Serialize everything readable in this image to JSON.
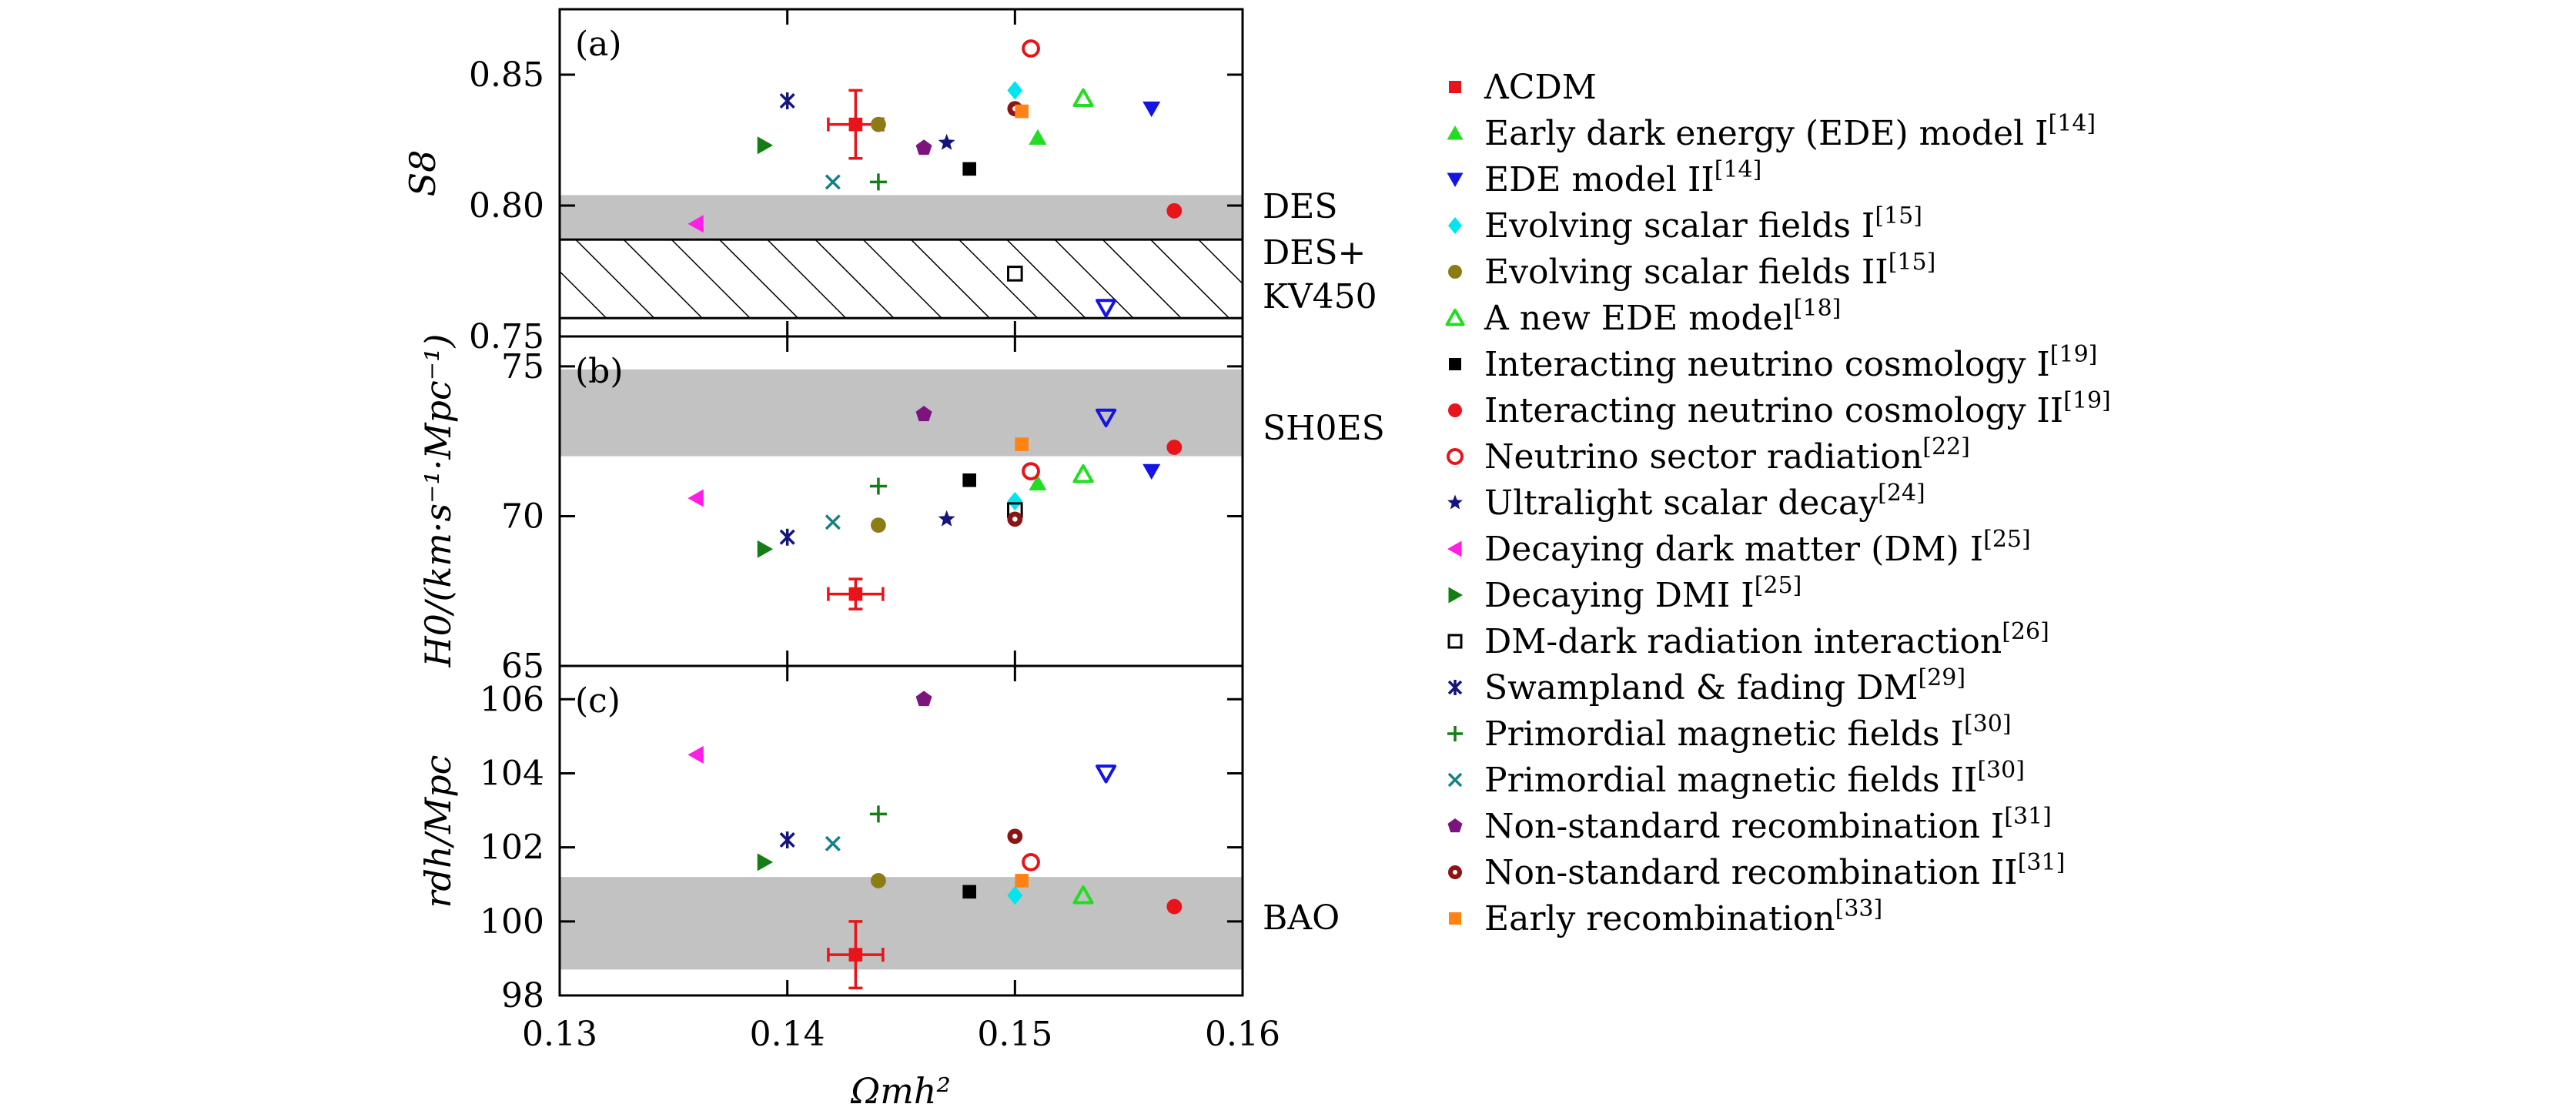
{
  "chart_data": {
    "type": "scatter",
    "xlabel": "Ωmh²",
    "x_ticks": [
      "0.13",
      "0.14",
      "0.15",
      "0.16"
    ],
    "xlim": [
      0.13,
      0.16
    ],
    "panels": [
      {
        "id": "a",
        "label": "(a)",
        "ylabel": "S8",
        "ylim": [
          0.75,
          0.875
        ],
        "y_ticks": [
          {
            "value": 0.75,
            "label": "0.75"
          },
          {
            "value": 0.8,
            "label": "0.80"
          },
          {
            "value": 0.85,
            "label": "0.85"
          }
        ],
        "bands": [
          {
            "label": "DES",
            "lo": 0.787,
            "hi": 0.804,
            "style": "gray"
          },
          {
            "label": "DES+ KV450",
            "lo": 0.757,
            "hi": 0.787,
            "style": "hatch"
          }
        ],
        "band_labels": [
          "DES",
          "DES+",
          "KV450"
        ],
        "points": [
          {
            "model": "ΛCDM",
            "x": 0.143,
            "y": 0.831,
            "xerr": 0.0012,
            "yerr": 0.013
          },
          {
            "model": "Early dark energy (EDE) model I",
            "x": 0.151,
            "y": 0.826
          },
          {
            "model": "EDE model II",
            "x": 0.156,
            "y": 0.837
          },
          {
            "model": "Evolving scalar fields I",
            "x": 0.15,
            "y": 0.844
          },
          {
            "model": "Evolving scalar fields II",
            "x": 0.144,
            "y": 0.831
          },
          {
            "model": "A new EDE model",
            "x": 0.153,
            "y": 0.841
          },
          {
            "model": "Interacting neutrino cosmology I",
            "x": 0.148,
            "y": 0.814
          },
          {
            "model": "Interacting neutrino cosmology II",
            "x": 0.157,
            "y": 0.798
          },
          {
            "model": "Neutrino sector radiation",
            "x": 0.1507,
            "y": 0.86
          },
          {
            "model": "Ultralight scalar decay",
            "x": 0.147,
            "y": 0.824
          },
          {
            "model": "Decaying dark matter (DM) I",
            "x": 0.136,
            "y": 0.793
          },
          {
            "model": "Decaying DMI I",
            "x": 0.139,
            "y": 0.823
          },
          {
            "model": "DM-dark radiation interaction",
            "x": 0.15,
            "y": 0.774
          },
          {
            "model": "Swampland & fading DM",
            "x": 0.14,
            "y": 0.84
          },
          {
            "model": "Primordial magnetic fields I",
            "x": 0.144,
            "y": 0.809
          },
          {
            "model": "Primordial magnetic fields II",
            "x": 0.142,
            "y": 0.809
          },
          {
            "model": "Non-standard recombination I",
            "x": 0.146,
            "y": 0.822
          },
          {
            "model": "Non-standard recombination II",
            "x": 0.15,
            "y": 0.837
          },
          {
            "model": "Early recombination",
            "x": 0.1503,
            "y": 0.836
          },
          {
            "model": "EDE model II",
            "x": 0.154,
            "y": 0.761,
            "open": true
          }
        ]
      },
      {
        "id": "b",
        "label": "(b)",
        "ylabel": "H0/(km·s⁻¹·Mpc⁻¹)",
        "ylim": [
          65,
          76
        ],
        "y_ticks": [
          {
            "value": 65,
            "label": "65"
          },
          {
            "value": 70,
            "label": "70"
          },
          {
            "value": 75,
            "label": "75"
          }
        ],
        "bands": [
          {
            "label": "SH0ES",
            "lo": 72.0,
            "hi": 74.9,
            "style": "gray"
          }
        ],
        "band_labels": [
          "SH0ES"
        ],
        "points": [
          {
            "model": "ΛCDM",
            "x": 0.143,
            "y": 67.4,
            "xerr": 0.0012,
            "yerr": 0.5
          },
          {
            "model": "Early dark energy (EDE) model I",
            "x": 0.151,
            "y": 71.1
          },
          {
            "model": "EDE model II",
            "x": 0.156,
            "y": 71.5
          },
          {
            "model": "Evolving scalar fields I",
            "x": 0.15,
            "y": 70.5
          },
          {
            "model": "Evolving scalar fields II",
            "x": 0.144,
            "y": 69.7
          },
          {
            "model": "A new EDE model",
            "x": 0.153,
            "y": 71.4
          },
          {
            "model": "Interacting neutrino cosmology I",
            "x": 0.148,
            "y": 71.2
          },
          {
            "model": "Interacting neutrino cosmology II",
            "x": 0.157,
            "y": 72.3
          },
          {
            "model": "Neutrino sector radiation",
            "x": 0.1507,
            "y": 71.5
          },
          {
            "model": "Ultralight scalar decay",
            "x": 0.147,
            "y": 69.9
          },
          {
            "model": "Decaying dark matter (DM) I",
            "x": 0.136,
            "y": 70.6
          },
          {
            "model": "Decaying DMI I",
            "x": 0.139,
            "y": 68.9
          },
          {
            "model": "DM-dark radiation interaction",
            "x": 0.15,
            "y": 70.2
          },
          {
            "model": "Swampland & fading DM",
            "x": 0.14,
            "y": 69.3
          },
          {
            "model": "Primordial magnetic fields I",
            "x": 0.144,
            "y": 71.0
          },
          {
            "model": "Primordial magnetic fields II",
            "x": 0.142,
            "y": 69.8
          },
          {
            "model": "Non-standard recombination I",
            "x": 0.146,
            "y": 73.4
          },
          {
            "model": "Non-standard recombination II",
            "x": 0.15,
            "y": 69.9
          },
          {
            "model": "Early recombination",
            "x": 0.1503,
            "y": 72.4
          },
          {
            "model": "EDE model II",
            "x": 0.154,
            "y": 73.3,
            "open": true
          }
        ]
      },
      {
        "id": "c",
        "label": "(c)",
        "ylabel": "rdh/Mpc",
        "ylim": [
          98,
          106.9
        ],
        "y_ticks": [
          {
            "value": 98,
            "label": "98"
          },
          {
            "value": 100,
            "label": "100"
          },
          {
            "value": 102,
            "label": "102"
          },
          {
            "value": 104,
            "label": "104"
          },
          {
            "value": 106,
            "label": "106"
          }
        ],
        "bands": [
          {
            "label": "BAO",
            "lo": 98.7,
            "hi": 101.2,
            "style": "gray"
          }
        ],
        "band_labels": [
          "BAO"
        ],
        "points": [
          {
            "model": "ΛCDM",
            "x": 0.143,
            "y": 99.1,
            "xerr": 0.0012,
            "yerr": 0.9
          },
          {
            "model": "Evolving scalar fields I",
            "x": 0.15,
            "y": 100.7
          },
          {
            "model": "Evolving scalar fields II",
            "x": 0.144,
            "y": 101.1
          },
          {
            "model": "A new EDE model",
            "x": 0.153,
            "y": 100.7
          },
          {
            "model": "Interacting neutrino cosmology I",
            "x": 0.148,
            "y": 100.8
          },
          {
            "model": "Interacting neutrino cosmology II",
            "x": 0.157,
            "y": 100.4
          },
          {
            "model": "Neutrino sector radiation",
            "x": 0.1507,
            "y": 101.6
          },
          {
            "model": "Decaying dark matter (DM) I",
            "x": 0.136,
            "y": 104.5
          },
          {
            "model": "Decaying DMI I",
            "x": 0.139,
            "y": 101.6
          },
          {
            "model": "Swampland & fading DM",
            "x": 0.14,
            "y": 102.2
          },
          {
            "model": "Primordial magnetic fields I",
            "x": 0.144,
            "y": 102.9
          },
          {
            "model": "Primordial magnetic fields II",
            "x": 0.142,
            "y": 102.1
          },
          {
            "model": "Non-standard recombination I",
            "x": 0.146,
            "y": 106.0
          },
          {
            "model": "Non-standard recombination II",
            "x": 0.15,
            "y": 102.3
          },
          {
            "model": "Early recombination",
            "x": 0.1503,
            "y": 101.1
          },
          {
            "model": "EDE model II",
            "x": 0.154,
            "y": 104.0,
            "open": true
          }
        ]
      }
    ],
    "legend": [
      {
        "label": "ΛCDM",
        "ref": "",
        "marker": "square",
        "color": "#e8141a",
        "filled": true
      },
      {
        "label": "Early dark energy (EDE) model I",
        "ref": "[14]",
        "marker": "triangle-up",
        "color": "#22dd22",
        "filled": true
      },
      {
        "label": "EDE model II",
        "ref": "[14]",
        "marker": "triangle-down",
        "color": "#1414e6",
        "filled": true
      },
      {
        "label": "Evolving scalar fields I",
        "ref": "[15]",
        "marker": "diamond",
        "color": "#00e5ee",
        "filled": true
      },
      {
        "label": "Evolving scalar fields II",
        "ref": "[15]",
        "marker": "circle",
        "color": "#8b7d14",
        "filled": true
      },
      {
        "label": "A new EDE model",
        "ref": "[18]",
        "marker": "triangle-up",
        "color": "#22dd22",
        "filled": false
      },
      {
        "label": "Interacting neutrino cosmology I",
        "ref": "[19]",
        "marker": "square",
        "color": "#000000",
        "filled": true
      },
      {
        "label": "Interacting neutrino cosmology II",
        "ref": "[19]",
        "marker": "circle",
        "color": "#e8141a",
        "filled": true
      },
      {
        "label": "Neutrino sector radiation",
        "ref": "[22]",
        "marker": "circle",
        "color": "#e8141a",
        "filled": false
      },
      {
        "label": "Ultralight scalar decay",
        "ref": "[24]",
        "marker": "star",
        "color": "#14147d",
        "filled": true
      },
      {
        "label": "Decaying dark matter (DM) I",
        "ref": "[25]",
        "marker": "triangle-left",
        "color": "#ff1ee6",
        "filled": true
      },
      {
        "label": "Decaying DMI I",
        "ref": "[25]",
        "marker": "triangle-right",
        "color": "#147d14",
        "filled": true
      },
      {
        "label": "DM-dark radiation interaction",
        "ref": "[26]",
        "marker": "square",
        "color": "#000000",
        "filled": false
      },
      {
        "label": "Swampland & fading DM",
        "ref": "[29]",
        "marker": "asterisk",
        "color": "#14147d",
        "filled": true
      },
      {
        "label": "Primordial magnetic fields I",
        "ref": "[30]",
        "marker": "plus",
        "color": "#147d14",
        "filled": true
      },
      {
        "label": "Primordial magnetic fields II",
        "ref": "[30]",
        "marker": "cross",
        "color": "#148282",
        "filled": true
      },
      {
        "label": "Non-standard recombination I",
        "ref": "[31]",
        "marker": "pentagon",
        "color": "#7d147d",
        "filled": true
      },
      {
        "label": "Non-standard recombination II",
        "ref": "[31]",
        "marker": "circle-dot",
        "color": "#8b1414",
        "filled": true
      },
      {
        "label": "Early recombination",
        "ref": "[33]",
        "marker": "square",
        "color": "#ff8214",
        "filled": true
      }
    ]
  }
}
